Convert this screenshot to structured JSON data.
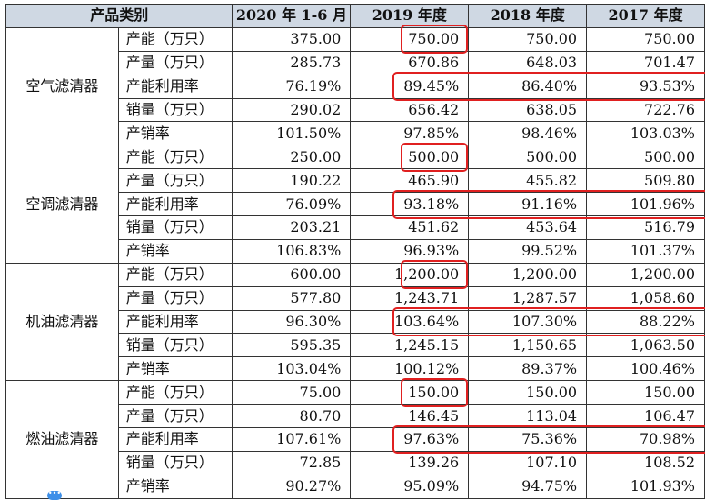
{
  "header": {
    "category": "产品类别",
    "columns": [
      "2020 年 1-6 月",
      "2019 年度",
      "2018 年度",
      "2017 年度"
    ]
  },
  "groups": [
    {
      "category": "空气滤清器",
      "rows": [
        {
          "metric": "产能（万只）",
          "values": [
            "375.00",
            "750.00",
            "750.00",
            "750.00"
          ]
        },
        {
          "metric": "产量（万只）",
          "values": [
            "285.73",
            "670.86",
            "648.03",
            "701.47"
          ]
        },
        {
          "metric": "产能利用率",
          "values": [
            "76.19%",
            "89.45%",
            "86.40%",
            "93.53%"
          ]
        },
        {
          "metric": "销量（万只）",
          "values": [
            "290.02",
            "656.42",
            "638.05",
            "722.76"
          ]
        },
        {
          "metric": "产销率",
          "values": [
            "101.50%",
            "97.85%",
            "98.46%",
            "103.03%"
          ]
        }
      ]
    },
    {
      "category": "空调滤清器",
      "rows": [
        {
          "metric": "产能（万只）",
          "values": [
            "250.00",
            "500.00",
            "500.00",
            "500.00"
          ]
        },
        {
          "metric": "产量（万只）",
          "values": [
            "190.22",
            "465.90",
            "455.82",
            "509.80"
          ]
        },
        {
          "metric": "产能利用率",
          "values": [
            "76.09%",
            "93.18%",
            "91.16%",
            "101.96%"
          ]
        },
        {
          "metric": "销量（万只）",
          "values": [
            "203.21",
            "451.62",
            "453.64",
            "516.79"
          ]
        },
        {
          "metric": "产销率",
          "values": [
            "106.83%",
            "96.93%",
            "99.52%",
            "101.37%"
          ]
        }
      ]
    },
    {
      "category": "机油滤清器",
      "rows": [
        {
          "metric": "产能（万只）",
          "values": [
            "600.00",
            "1,200.00",
            "1,200.00",
            "1,200.00"
          ]
        },
        {
          "metric": "产量（万只）",
          "values": [
            "577.80",
            "1,243.71",
            "1,287.57",
            "1,058.60"
          ]
        },
        {
          "metric": "产能利用率",
          "values": [
            "96.30%",
            "103.64%",
            "107.30%",
            "88.22%"
          ]
        },
        {
          "metric": "销量（万只）",
          "values": [
            "595.35",
            "1,245.15",
            "1,150.65",
            "1,063.50"
          ]
        },
        {
          "metric": "产销率",
          "values": [
            "103.04%",
            "100.12%",
            "89.37%",
            "100.46%"
          ]
        }
      ]
    },
    {
      "category": "燃油滤清器",
      "rows": [
        {
          "metric": "产能（万只）",
          "values": [
            "75.00",
            "150.00",
            "150.00",
            "150.00"
          ]
        },
        {
          "metric": "产量（万只）",
          "values": [
            "80.70",
            "146.45",
            "113.04",
            "106.47"
          ]
        },
        {
          "metric": "产能利用率",
          "values": [
            "107.61%",
            "97.63%",
            "75.36%",
            "70.98%"
          ]
        },
        {
          "metric": "销量（万只）",
          "values": [
            "72.85",
            "139.26",
            "107.10",
            "108.52"
          ]
        },
        {
          "metric": "产销率",
          "values": [
            "90.27%",
            "95.09%",
            "94.75%",
            "101.93%"
          ]
        }
      ]
    }
  ],
  "highlight_color": "#e02020",
  "header_bg": "#cfd8e3",
  "chat_icon": "chat-bubble-icon"
}
